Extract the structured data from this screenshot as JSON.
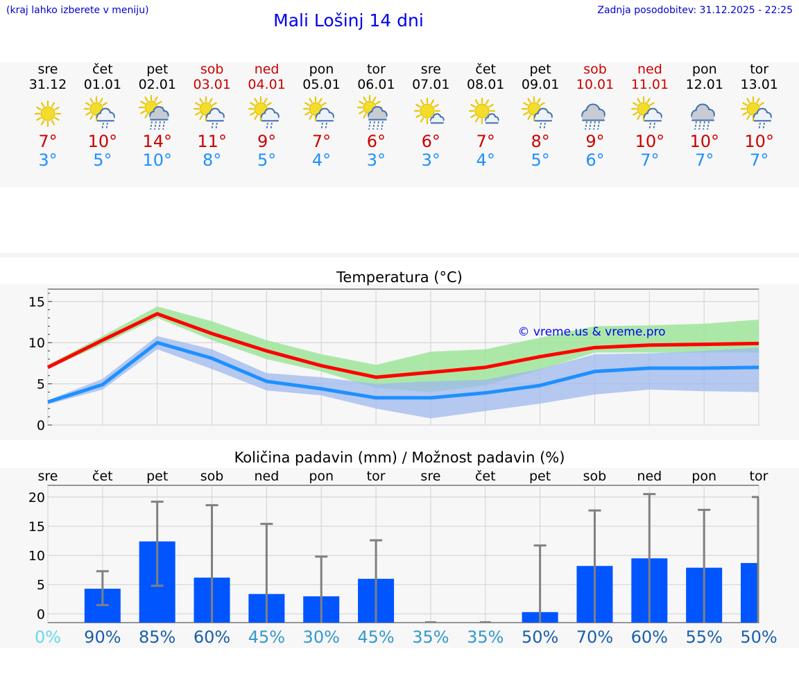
{
  "header": {
    "menu_hint": "(kraj lahko izberete v meniju)",
    "title": "Mali Lošinj 14 dni",
    "last_update": "Zadnja posodobitev: 31.12.2025 - 22:25"
  },
  "days": [
    {
      "name": "sre",
      "date": "31.12",
      "weekend": false,
      "icon": "sun-icon",
      "max": "7°",
      "min": "3°"
    },
    {
      "name": "čet",
      "date": "01.01",
      "weekend": false,
      "icon": "sun-cloud-rain-icon",
      "max": "10°",
      "min": "5°"
    },
    {
      "name": "pet",
      "date": "02.01",
      "weekend": false,
      "icon": "sun-cloud-heavy-rain-icon",
      "max": "14°",
      "min": "10°"
    },
    {
      "name": "sob",
      "date": "03.01",
      "weekend": true,
      "icon": "sun-cloud-rain-icon",
      "max": "11°",
      "min": "8°"
    },
    {
      "name": "ned",
      "date": "04.01",
      "weekend": true,
      "icon": "sun-cloud-rain-icon",
      "max": "9°",
      "min": "5°"
    },
    {
      "name": "pon",
      "date": "05.01",
      "weekend": false,
      "icon": "sun-cloud-rain-icon",
      "max": "7°",
      "min": "4°"
    },
    {
      "name": "tor",
      "date": "06.01",
      "weekend": false,
      "icon": "sun-cloud-heavy-rain-icon",
      "max": "6°",
      "min": "3°"
    },
    {
      "name": "sre",
      "date": "07.01",
      "weekend": false,
      "icon": "sun-small-cloud-icon",
      "max": "6°",
      "min": "3°"
    },
    {
      "name": "čet",
      "date": "08.01",
      "weekend": false,
      "icon": "sun-small-cloud-icon",
      "max": "7°",
      "min": "4°"
    },
    {
      "name": "pet",
      "date": "09.01",
      "weekend": false,
      "icon": "sun-cloud-rain-icon",
      "max": "8°",
      "min": "5°"
    },
    {
      "name": "sob",
      "date": "10.01",
      "weekend": true,
      "icon": "cloud-heavy-rain-icon",
      "max": "9°",
      "min": "6°"
    },
    {
      "name": "ned",
      "date": "11.01",
      "weekend": true,
      "icon": "sun-cloud-rain-icon",
      "max": "10°",
      "min": "7°"
    },
    {
      "name": "pon",
      "date": "12.01",
      "weekend": false,
      "icon": "cloud-heavy-rain-icon",
      "max": "10°",
      "min": "7°"
    },
    {
      "name": "tor",
      "date": "13.01",
      "weekend": false,
      "icon": "sun-cloud-rain-icon",
      "max": "10°",
      "min": "7°"
    }
  ],
  "colors": {
    "weekend": "#cc0000",
    "weekday": "#000000",
    "max_line": "#ff0000",
    "min_line": "#1e90ff",
    "max_band": "#9de59a",
    "min_band": "#9db8ee",
    "bars": "#0055ff",
    "error_bars": "#808080"
  },
  "chart_data": [
    {
      "type": "line",
      "title": "Temperatura (°C)",
      "watermark": "© vreme.us & vreme.pro",
      "ylim": [
        0,
        16.5
      ],
      "yticks": [
        0,
        5,
        10,
        15
      ],
      "x": [
        0,
        1,
        2,
        3,
        4,
        5,
        6,
        7,
        8,
        9,
        10,
        11,
        12,
        13
      ],
      "series": [
        {
          "name": "max",
          "values": [
            7,
            10.3,
            13.5,
            11.1,
            9.0,
            7.2,
            5.8,
            6.4,
            7.0,
            8.3,
            9.4,
            9.7,
            9.8,
            9.9
          ],
          "band_low": [
            6.8,
            9.8,
            13.0,
            10.3,
            8.0,
            6.5,
            4.5,
            4.0,
            4.8,
            6.7,
            8.8,
            8.8,
            8.8,
            8.8
          ],
          "band_high": [
            7.3,
            10.8,
            14.4,
            12.6,
            10.3,
            8.6,
            7.3,
            8.9,
            9.2,
            10.6,
            12.0,
            12.1,
            12.3,
            12.8
          ]
        },
        {
          "name": "min",
          "values": [
            2.8,
            4.9,
            10.0,
            8.1,
            5.3,
            4.4,
            3.3,
            3.3,
            3.9,
            4.8,
            6.5,
            6.9,
            6.9,
            7.0
          ],
          "band_low": [
            2.5,
            4.3,
            9.2,
            6.8,
            4.2,
            3.6,
            2.0,
            0.8,
            1.7,
            2.6,
            3.7,
            4.3,
            4.1,
            4.0
          ],
          "band_high": [
            3.0,
            5.6,
            10.8,
            9.2,
            6.3,
            5.8,
            5.0,
            5.3,
            5.5,
            6.8,
            8.6,
            8.7,
            9.0,
            9.4
          ]
        }
      ]
    },
    {
      "type": "bar",
      "title": "Količina padavin (mm) / Možnost padavin (%)",
      "ylim": [
        -1.5,
        22
      ],
      "yticks": [
        0,
        5,
        10,
        15,
        20
      ],
      "categories": [
        "sre",
        "čet",
        "pet",
        "sob",
        "ned",
        "pon",
        "tor",
        "sre",
        "čet",
        "pet",
        "sob",
        "ned",
        "pon",
        "tor"
      ],
      "values": [
        0,
        4.3,
        12.4,
        6.2,
        3.4,
        3.0,
        6.0,
        0,
        0,
        0.3,
        8.2,
        9.5,
        7.9,
        8.7
      ],
      "error_low": [
        0,
        1.5,
        4.8,
        0,
        0,
        0,
        0,
        0,
        0,
        0,
        0,
        0,
        0,
        0
      ],
      "error_high": [
        0,
        7.3,
        19.2,
        18.6,
        15.4,
        9.8,
        12.6,
        0,
        0,
        11.7,
        17.7,
        20.5,
        17.8,
        20.0
      ],
      "probabilities": [
        "0%",
        "90%",
        "85%",
        "60%",
        "45%",
        "30%",
        "45%",
        "35%",
        "35%",
        "50%",
        "70%",
        "60%",
        "55%",
        "50%"
      ],
      "prob_values": [
        0,
        90,
        85,
        60,
        45,
        30,
        45,
        35,
        35,
        50,
        70,
        60,
        55,
        50
      ]
    }
  ]
}
